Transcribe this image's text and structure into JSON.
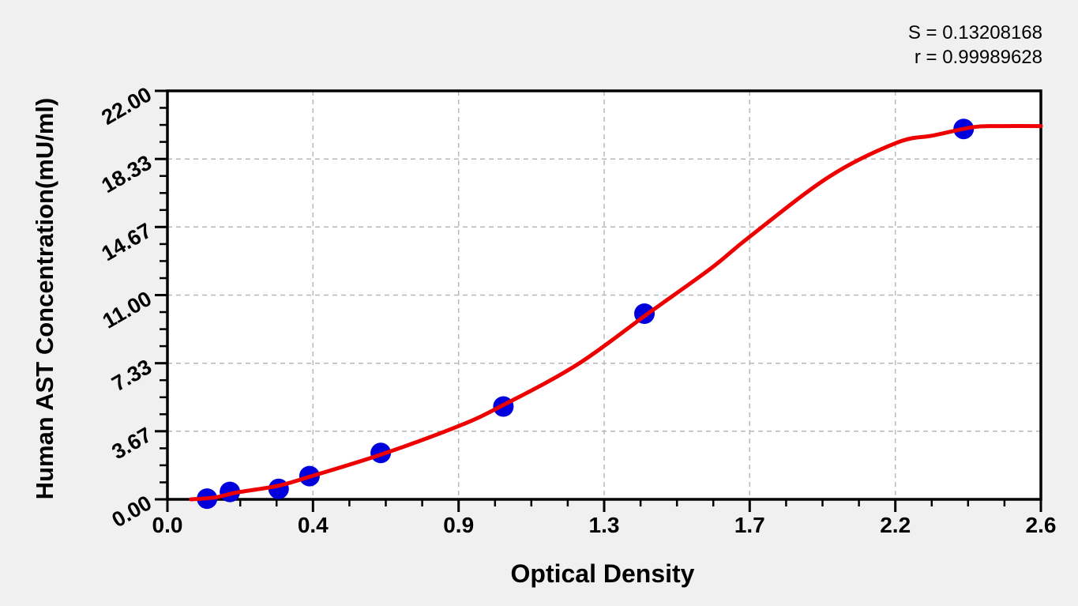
{
  "figure": {
    "background_color": "#f0f0f0",
    "plot_background_color": "#ffffff",
    "axis_color": "#000000",
    "grid_color": "#b8b8b8",
    "stats": {
      "s_display": "S = 0.13208168",
      "r_display": "r = 0.99989628"
    }
  },
  "chart_data": {
    "type": "scatter",
    "title": "",
    "xlabel": "Optical Density",
    "ylabel": "Human AST Concentration(mU/ml)",
    "legend": "none",
    "grid": "dashed gridlines at major ticks only",
    "x_axis": {
      "min": 0,
      "max": 2.6,
      "major_tick_values": [
        0,
        0.43333,
        0.86667,
        1.3,
        1.73333,
        2.16667,
        2.6
      ],
      "major_tick_labels": [
        "0.0",
        "0.4",
        "0.9",
        "1.3",
        "1.7",
        "2.2",
        "2.6"
      ],
      "minor_ticks_per_interval": 3
    },
    "y_axis": {
      "min": 0,
      "max": 22,
      "major_tick_values": [
        0,
        3.66667,
        7.33333,
        11,
        14.66667,
        18.33333,
        22
      ],
      "major_tick_labels": [
        "0.00",
        "3.67",
        "7.33",
        "11.00",
        "14.67",
        "18.33",
        "22.00"
      ],
      "minor_ticks_per_interval": 3
    },
    "series": [
      {
        "name": "standard-points",
        "type": "scatter",
        "color": "#0000dd",
        "marker": "circle",
        "points": [
          {
            "od": 0.118,
            "conc": 0.04
          },
          {
            "od": 0.186,
            "conc": 0.4
          },
          {
            "od": 0.331,
            "conc": 0.56
          },
          {
            "od": 0.423,
            "conc": 1.25
          },
          {
            "od": 0.635,
            "conc": 2.5
          },
          {
            "od": 1.0,
            "conc": 5.0
          },
          {
            "od": 1.42,
            "conc": 10.0
          },
          {
            "od": 2.37,
            "conc": 19.95
          }
        ]
      },
      {
        "name": "fitted-curve",
        "type": "line",
        "color": "#ee0000",
        "points_od_conc": [
          [
            0.07,
            0.0
          ],
          [
            0.14,
            0.1
          ],
          [
            0.21,
            0.38
          ],
          [
            0.33,
            0.73
          ],
          [
            0.42,
            1.2
          ],
          [
            0.64,
            2.44
          ],
          [
            0.87,
            3.97
          ],
          [
            1.0,
            5.08
          ],
          [
            1.22,
            7.26
          ],
          [
            1.43,
            10.0
          ],
          [
            1.62,
            12.47
          ],
          [
            1.73,
            14.1
          ],
          [
            1.97,
            17.38
          ],
          [
            2.17,
            19.2
          ],
          [
            2.28,
            19.6
          ],
          [
            2.4,
            20.05
          ],
          [
            2.48,
            20.1
          ],
          [
            2.6,
            20.1
          ]
        ]
      }
    ],
    "stats": {
      "S": "0.13208168",
      "r": "0.99989628"
    }
  }
}
